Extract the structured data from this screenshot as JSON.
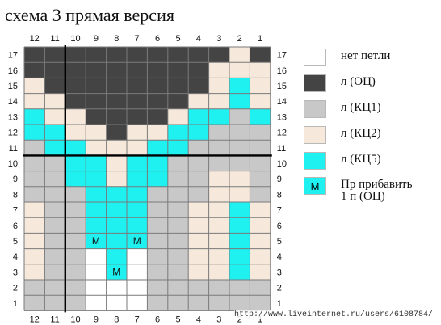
{
  "title": "схема 3 прямая версия",
  "colors": {
    "0": "#ffffff",
    "1": "#444444",
    "2": "#c8c8c8",
    "3": "#f6e8da",
    "4": "#1ff0f0"
  },
  "column_labels": [
    "12",
    "11",
    "10",
    "9",
    "8",
    "7",
    "6",
    "5",
    "4",
    "3",
    "2",
    "1"
  ],
  "row_labels": [
    "17",
    "16",
    "15",
    "14",
    "13",
    "12",
    "11",
    "10",
    "9",
    "8",
    "7",
    "6",
    "5",
    "4",
    "3",
    "2",
    "1"
  ],
  "grid": [
    [
      1,
      1,
      1,
      1,
      1,
      1,
      1,
      1,
      1,
      1,
      3,
      1
    ],
    [
      1,
      1,
      1,
      1,
      1,
      1,
      1,
      1,
      1,
      3,
      3,
      3
    ],
    [
      3,
      1,
      1,
      1,
      1,
      1,
      1,
      1,
      1,
      3,
      4,
      3
    ],
    [
      3,
      3,
      1,
      1,
      1,
      1,
      1,
      1,
      3,
      3,
      4,
      3
    ],
    [
      4,
      3,
      3,
      1,
      1,
      1,
      1,
      3,
      4,
      4,
      2,
      4
    ],
    [
      4,
      4,
      3,
      3,
      1,
      3,
      3,
      4,
      4,
      2,
      2,
      2
    ],
    [
      2,
      4,
      4,
      3,
      3,
      3,
      4,
      4,
      2,
      2,
      2,
      2
    ],
    [
      2,
      2,
      4,
      4,
      3,
      4,
      4,
      2,
      2,
      2,
      2,
      2
    ],
    [
      2,
      2,
      4,
      4,
      3,
      4,
      4,
      2,
      2,
      3,
      3,
      2
    ],
    [
      2,
      2,
      2,
      4,
      4,
      4,
      2,
      2,
      2,
      3,
      3,
      2
    ],
    [
      3,
      2,
      2,
      4,
      4,
      4,
      2,
      2,
      3,
      3,
      4,
      3
    ],
    [
      3,
      2,
      2,
      4,
      4,
      4,
      2,
      2,
      3,
      3,
      4,
      3
    ],
    [
      3,
      2,
      2,
      4,
      4,
      4,
      2,
      2,
      3,
      3,
      4,
      3
    ],
    [
      3,
      2,
      2,
      0,
      4,
      0,
      2,
      2,
      3,
      3,
      4,
      3
    ],
    [
      3,
      2,
      2,
      0,
      4,
      0,
      2,
      2,
      3,
      3,
      4,
      3
    ],
    [
      2,
      2,
      2,
      0,
      0,
      0,
      2,
      2,
      2,
      2,
      2,
      2
    ],
    [
      2,
      2,
      2,
      0,
      0,
      0,
      2,
      2,
      2,
      2,
      2,
      2
    ]
  ],
  "m_marks": [
    {
      "row": 12,
      "col": 3,
      "text": "M"
    },
    {
      "row": 12,
      "col": 5,
      "text": "M"
    },
    {
      "row": 14,
      "col": 4,
      "text": "M"
    }
  ],
  "legend": [
    {
      "color": "#ffffff",
      "label": "нет петли",
      "symbol": ""
    },
    {
      "color": "#444444",
      "label": "л (ОЦ)",
      "symbol": ""
    },
    {
      "color": "#c8c8c8",
      "label": "л (КЦ1)",
      "symbol": ""
    },
    {
      "color": "#f6e8da",
      "label": "л (КЦ2)",
      "symbol": ""
    },
    {
      "color": "#1ff0f0",
      "label": "л (КЦ5)",
      "symbol": ""
    },
    {
      "color": "#1ff0f0",
      "label": "Пр   прибавить",
      "label2": "1 п (ОЦ)",
      "symbol": "М"
    }
  ],
  "watermark": "http://www.liveinternet.ru/users/6108784/"
}
